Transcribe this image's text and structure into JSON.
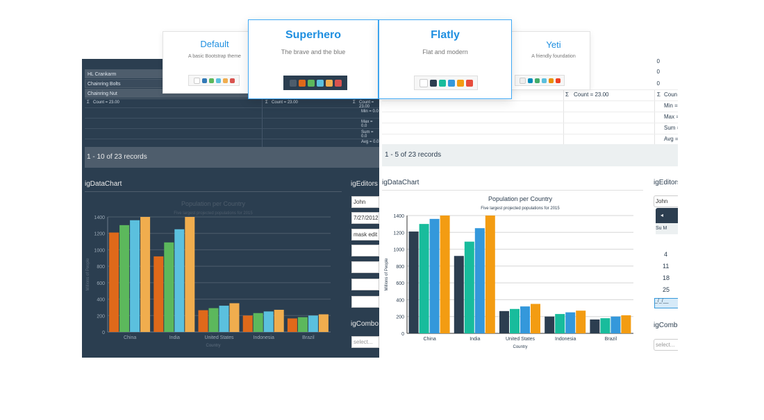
{
  "dark": {
    "rows": [
      "HL Crankarm",
      "Chainring Bolts",
      "Chainring Nut"
    ],
    "count_label": "Count = 23.00",
    "aggregates": [
      "Min = 0.0",
      "Max = 0.0",
      "Sum = 0.0",
      "Avg = 0.0"
    ],
    "pager": "1 - 10 of 23 records",
    "chart_heading": "igDataChart",
    "editors_heading": "igEditors",
    "editor_values": [
      "John",
      "7/27/2012",
      "mask edit"
    ],
    "combo_heading": "igCombo",
    "combo_placeholder": "select..."
  },
  "light": {
    "zeros": [
      "0",
      "0",
      "0"
    ],
    "count_label": "Count = 23.00",
    "count_label_short": "Coun",
    "aggregates": [
      "Min =",
      "Max =",
      "Sum =",
      "Avg ="
    ],
    "pager": "1 - 5 of 23 records",
    "chart_heading": "igDataChart",
    "editors_heading": "igEditors",
    "editor_value": "John",
    "calendar": {
      "prev": "◂",
      "days": "Su   M",
      "numbers": [
        "4",
        "11",
        "18",
        "25"
      ],
      "selected": "_/_/__"
    },
    "combo_heading": "igCombo",
    "combo_placeholder": "select..."
  },
  "themes": [
    {
      "name": "Default",
      "desc": "A basic Bootstrap theme",
      "colors": [
        "#ffffff",
        "#337ab7",
        "#5cb85c",
        "#5bc0de",
        "#f0ad4e",
        "#d9534f"
      ]
    },
    {
      "name": "Superhero",
      "desc": "The brave and the blue",
      "colors": [
        "#4e5d6c",
        "#df691a",
        "#5cb85c",
        "#5bc0de",
        "#f0ad4e",
        "#d9534f"
      ]
    },
    {
      "name": "Flatly",
      "desc": "Flat and modern",
      "colors": [
        "#ffffff",
        "#2c3e50",
        "#18bc9c",
        "#3498db",
        "#f39c12",
        "#e74c3c"
      ]
    },
    {
      "name": "Yeti",
      "desc": "A friendly foundation",
      "colors": [
        "#eeeeee",
        "#008cba",
        "#43ac6a",
        "#5bc0de",
        "#e99002",
        "#f04124"
      ]
    }
  ],
  "chart_data": [
    {
      "type": "bar",
      "theme": "Superhero",
      "title": "Population per Country",
      "subtitle": "Five largest projected populations for 2015",
      "xlabel": "Country",
      "ylabel": "Millions of People",
      "ylim": [
        0,
        1400
      ],
      "yticks": [
        "0",
        "200",
        "400",
        "600",
        "800",
        "1000",
        "1200",
        "1400"
      ],
      "categories": [
        "China",
        "India",
        "United States",
        "Indonesia",
        "Brazil"
      ],
      "colors": [
        "#df691a",
        "#5cb85c",
        "#5bc0de",
        "#f0ad4e"
      ],
      "series": [
        {
          "values": [
            1210,
            920,
            265,
            200,
            165
          ]
        },
        {
          "values": [
            1300,
            1090,
            290,
            230,
            180
          ]
        },
        {
          "values": [
            1360,
            1250,
            320,
            250,
            200
          ]
        },
        {
          "values": [
            1400,
            1400,
            350,
            270,
            215
          ]
        }
      ],
      "grid": true
    },
    {
      "type": "bar",
      "theme": "Flatly",
      "title": "Population per Country",
      "subtitle": "Five largest projected populations for 2015",
      "xlabel": "Country",
      "ylabel": "Millions of People",
      "ylim": [
        0,
        1400
      ],
      "yticks": [
        "0",
        "200",
        "400",
        "600",
        "800",
        "1000",
        "1200",
        "1400"
      ],
      "categories": [
        "China",
        "India",
        "United States",
        "Indonesia",
        "Brazil"
      ],
      "colors": [
        "#2c3e50",
        "#18bc9c",
        "#3498db",
        "#f39c12"
      ],
      "series": [
        {
          "values": [
            1210,
            920,
            265,
            200,
            165
          ]
        },
        {
          "values": [
            1300,
            1090,
            290,
            230,
            180
          ]
        },
        {
          "values": [
            1360,
            1250,
            320,
            250,
            200
          ]
        },
        {
          "values": [
            1400,
            1400,
            350,
            270,
            215
          ]
        }
      ],
      "grid": true
    }
  ]
}
